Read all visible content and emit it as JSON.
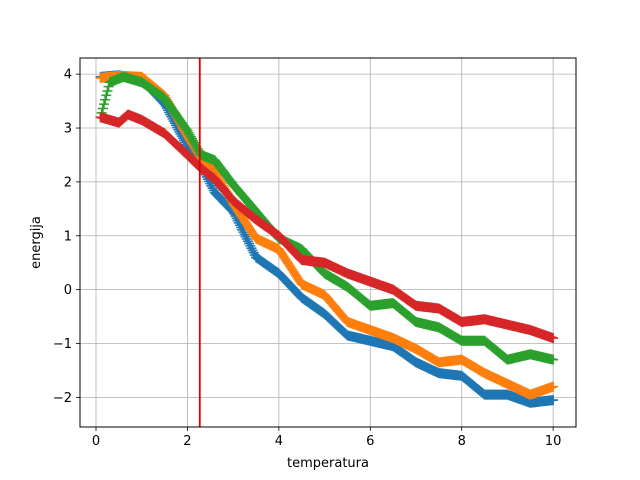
{
  "chart_data": {
    "type": "scatter",
    "title": "",
    "xlabel": "temperatura",
    "ylabel": "energija",
    "xlim": [
      -0.35,
      10.5
    ],
    "ylim": [
      -2.55,
      4.3
    ],
    "xticks": [
      0,
      2,
      4,
      6,
      8,
      10
    ],
    "yticks": [
      -2,
      -1,
      0,
      1,
      2,
      3,
      4
    ],
    "grid": true,
    "marker": "+",
    "vline": {
      "x": 2.27,
      "color": "#e00000"
    },
    "series": [
      {
        "color": "#1f77b4",
        "x": [
          0.1,
          0.5,
          1.0,
          1.5,
          2.0,
          2.3,
          2.6,
          3.0,
          3.5,
          4.0,
          4.5,
          5.0,
          5.5,
          6.0,
          6.5,
          7.0,
          7.5,
          8.0,
          8.5,
          9.0,
          9.5,
          10.0
        ],
        "y": [
          3.95,
          3.98,
          3.9,
          3.45,
          2.65,
          2.3,
          1.8,
          1.45,
          0.6,
          0.3,
          -0.15,
          -0.45,
          -0.85,
          -0.95,
          -1.05,
          -1.35,
          -1.55,
          -1.6,
          -1.95,
          -1.95,
          -2.1,
          -2.05
        ]
      },
      {
        "color": "#ff7f0e",
        "x": [
          0.1,
          0.5,
          1.0,
          1.5,
          2.0,
          2.3,
          2.6,
          3.0,
          3.5,
          4.0,
          4.5,
          5.0,
          5.5,
          6.0,
          6.5,
          7.0,
          7.5,
          8.0,
          8.5,
          9.0,
          9.5,
          10.0
        ],
        "y": [
          3.93,
          3.97,
          3.95,
          3.6,
          2.85,
          2.45,
          2.2,
          1.6,
          0.95,
          0.75,
          0.1,
          -0.1,
          -0.6,
          -0.75,
          -0.9,
          -1.1,
          -1.35,
          -1.3,
          -1.55,
          -1.75,
          -1.95,
          -1.8
        ]
      },
      {
        "color": "#2ca02c",
        "x": [
          0.1,
          0.3,
          0.6,
          1.0,
          1.5,
          2.0,
          2.3,
          2.6,
          3.0,
          3.5,
          4.0,
          4.5,
          5.0,
          5.5,
          6.0,
          6.5,
          7.0,
          7.5,
          8.0,
          8.5,
          9.0,
          9.5,
          10.0
        ],
        "y": [
          3.2,
          3.85,
          3.95,
          3.85,
          3.55,
          2.95,
          2.5,
          2.4,
          1.95,
          1.45,
          0.95,
          0.75,
          0.3,
          0.05,
          -0.3,
          -0.25,
          -0.6,
          -0.7,
          -0.95,
          -0.95,
          -1.3,
          -1.2,
          -1.3
        ]
      },
      {
        "color": "#d62728",
        "x": [
          0.1,
          0.5,
          0.7,
          1.0,
          1.5,
          2.0,
          2.3,
          2.6,
          3.0,
          3.5,
          4.0,
          4.5,
          5.0,
          5.5,
          6.0,
          6.5,
          7.0,
          7.5,
          8.0,
          8.5,
          9.0,
          9.5,
          10.0
        ],
        "y": [
          3.2,
          3.1,
          3.25,
          3.15,
          2.9,
          2.5,
          2.25,
          2.05,
          1.65,
          1.3,
          1.0,
          0.55,
          0.5,
          0.3,
          0.15,
          0.0,
          -0.3,
          -0.35,
          -0.6,
          -0.55,
          -0.65,
          -0.75,
          -0.9
        ]
      }
    ]
  }
}
